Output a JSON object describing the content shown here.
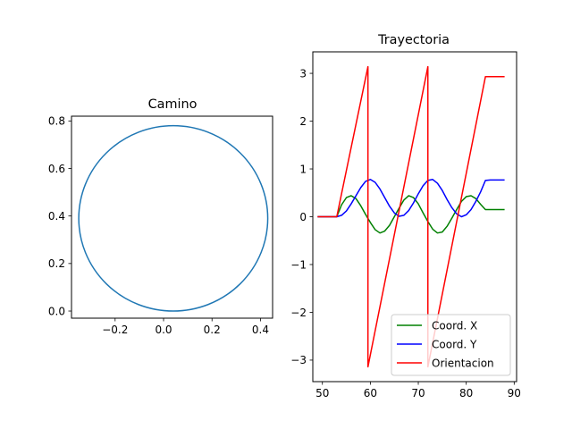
{
  "chart_data": [
    {
      "type": "line",
      "title": "Camino",
      "xlabel": "",
      "ylabel": "",
      "xlim": [
        -0.38,
        0.45
      ],
      "ylim": [
        -0.03,
        0.82
      ],
      "xticks": [
        -0.2,
        0.0,
        0.2,
        0.4
      ],
      "xtick_labels": [
        "−0.2",
        "0.0",
        "0.2",
        "0.4"
      ],
      "yticks": [
        0.0,
        0.2,
        0.4,
        0.6,
        0.8
      ],
      "ytick_labels": [
        "0.0",
        "0.2",
        "0.4",
        "0.6",
        "0.8"
      ],
      "grid": false,
      "series": [
        {
          "color": "#1f77b4",
          "shape": "circle",
          "center": [
            0.04,
            0.39
          ],
          "radius": 0.39
        }
      ]
    },
    {
      "type": "line",
      "title": "Trayectoria",
      "xlabel": "",
      "ylabel": "",
      "xlim": [
        48.0,
        90.5
      ],
      "ylim": [
        -3.45,
        3.45
      ],
      "xticks": [
        50,
        60,
        70,
        80,
        90
      ],
      "xtick_labels": [
        "50",
        "60",
        "70",
        "80",
        "90"
      ],
      "yticks": [
        -3,
        -2,
        -1,
        0,
        1,
        2,
        3
      ],
      "ytick_labels": [
        "−3",
        "−2",
        "−1",
        "0",
        "1",
        "2",
        "3"
      ],
      "grid": false,
      "legend": {
        "placement": "lower-right"
      },
      "series": [
        {
          "name": "Coord. X",
          "color": "#008000",
          "x": [
            49,
            53,
            54,
            55,
            56,
            57,
            58,
            59,
            60,
            61,
            62,
            63,
            64,
            65,
            66,
            67,
            68,
            69,
            70,
            71,
            72,
            73,
            74,
            75,
            76,
            77,
            78,
            79,
            80,
            81,
            82,
            83,
            84,
            85,
            86,
            87,
            88
          ],
          "y": [
            0.0,
            0.0,
            0.25,
            0.4,
            0.44,
            0.38,
            0.23,
            0.05,
            -0.12,
            -0.27,
            -0.34,
            -0.3,
            -0.18,
            0.0,
            0.18,
            0.35,
            0.44,
            0.4,
            0.27,
            0.08,
            -0.1,
            -0.26,
            -0.34,
            -0.32,
            -0.2,
            -0.03,
            0.15,
            0.32,
            0.42,
            0.44,
            0.38,
            0.26,
            0.15,
            0.15,
            0.15,
            0.15,
            0.15
          ]
        },
        {
          "name": "Coord. Y",
          "color": "#0000ff",
          "x": [
            49,
            53,
            54,
            55,
            56,
            57,
            58,
            59,
            60,
            61,
            62,
            63,
            64,
            65,
            66,
            67,
            68,
            69,
            70,
            71,
            72,
            73,
            74,
            75,
            76,
            77,
            78,
            79,
            80,
            81,
            82,
            83,
            84,
            85,
            86,
            87,
            88
          ],
          "y": [
            0.0,
            0.0,
            0.03,
            0.12,
            0.27,
            0.44,
            0.61,
            0.74,
            0.78,
            0.72,
            0.58,
            0.4,
            0.22,
            0.08,
            0.01,
            0.03,
            0.13,
            0.29,
            0.48,
            0.65,
            0.76,
            0.78,
            0.7,
            0.55,
            0.36,
            0.19,
            0.06,
            0.0,
            0.04,
            0.15,
            0.32,
            0.52,
            0.76,
            0.77,
            0.77,
            0.77,
            0.77
          ]
        },
        {
          "name": "Orientacion",
          "color": "#ff0000",
          "x": [
            49,
            53,
            59.5,
            59.5,
            72.0,
            72.0,
            84.0,
            88
          ],
          "y": [
            0.0,
            0.0,
            3.14,
            -3.14,
            3.14,
            -3.14,
            2.93,
            2.93
          ]
        }
      ]
    }
  ]
}
